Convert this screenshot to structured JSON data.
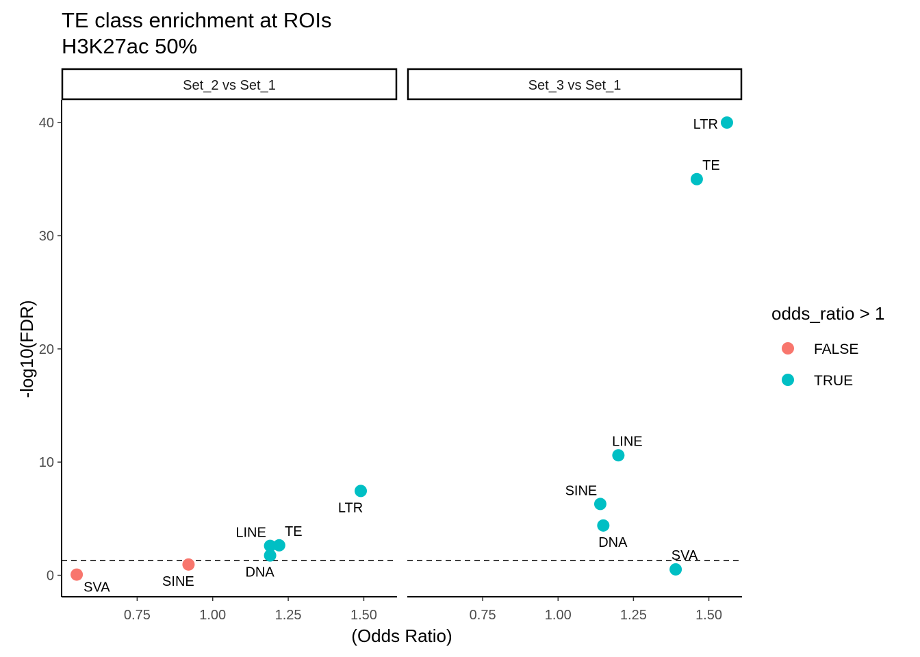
{
  "chart_data": {
    "type": "scatter",
    "title": "TE class enrichment at ROIs",
    "subtitle": "H3K27ac 50%",
    "xlabel": "(Odds Ratio)",
    "ylabel": "-log10(FDR)",
    "xlim": [
      0.5,
      1.61
    ],
    "ylim": [
      -1.9,
      42.0
    ],
    "x_ticks": [
      0.75,
      1.0,
      1.25,
      1.5
    ],
    "x_tick_labels": [
      "0.75",
      "1.00",
      "1.25",
      "1.50"
    ],
    "y_ticks": [
      0,
      10,
      20,
      30,
      40
    ],
    "y_tick_labels": [
      "0",
      "10",
      "20",
      "30",
      "40"
    ],
    "grid": false,
    "hline": {
      "y": 1.301,
      "style": "dashed"
    },
    "legend": {
      "title": "odds_ratio > 1",
      "position": "right",
      "entries": [
        {
          "label": "FALSE",
          "color": "#F8766D"
        },
        {
          "label": "TRUE",
          "color": "#00BFC4"
        }
      ]
    },
    "facets": [
      {
        "label": "Set_2 vs Set_1",
        "points": [
          {
            "label": "SVA",
            "x": 0.55,
            "y": 0.06,
            "group": "FALSE",
            "label_pos": "below-right"
          },
          {
            "label": "SINE",
            "x": 0.92,
            "y": 0.95,
            "group": "FALSE",
            "label_pos": "below-left"
          },
          {
            "label": "DNA",
            "x": 1.19,
            "y": 1.75,
            "group": "TRUE",
            "label_pos": "below-left"
          },
          {
            "label": "LINE",
            "x": 1.19,
            "y": 2.6,
            "group": "TRUE",
            "label_pos": "above-left"
          },
          {
            "label": "TE",
            "x": 1.22,
            "y": 2.65,
            "group": "TRUE",
            "label_pos": "above-right"
          },
          {
            "label": "LTR",
            "x": 1.49,
            "y": 7.45,
            "group": "TRUE",
            "label_pos": "below-left"
          }
        ]
      },
      {
        "label": "Set_3 vs Set_1",
        "points": [
          {
            "label": "SVA",
            "x": 1.39,
            "y": 0.52,
            "group": "TRUE",
            "label_pos": "above"
          },
          {
            "label": "DNA",
            "x": 1.15,
            "y": 4.4,
            "group": "TRUE",
            "label_pos": "below"
          },
          {
            "label": "SINE",
            "x": 1.14,
            "y": 6.3,
            "group": "TRUE",
            "label_pos": "above-left"
          },
          {
            "label": "LINE",
            "x": 1.2,
            "y": 10.6,
            "group": "TRUE",
            "label_pos": "above"
          },
          {
            "label": "TE",
            "x": 1.46,
            "y": 35.0,
            "group": "TRUE",
            "label_pos": "above-right"
          },
          {
            "label": "LTR",
            "x": 1.56,
            "y": 40.0,
            "group": "TRUE",
            "label_pos": "left"
          }
        ]
      }
    ]
  }
}
